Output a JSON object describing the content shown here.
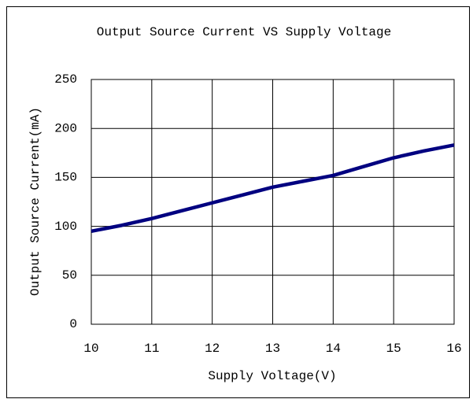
{
  "chart_data": {
    "type": "line",
    "title": "Output Source Current VS Supply Voltage",
    "x_label": "Supply Voltage(V)",
    "y_label": "Output Source Current(mA)",
    "x": [
      10,
      10.5,
      11,
      11.5,
      12,
      12.5,
      13,
      13.5,
      14,
      14.5,
      15,
      15.5,
      16
    ],
    "series": [
      {
        "name": "Output Source Current",
        "color": "#000080",
        "values": [
          95,
          101,
          108,
          116,
          124,
          132,
          140,
          146,
          152,
          161,
          170,
          177,
          183
        ]
      }
    ],
    "xlim": [
      10,
      16
    ],
    "xticks": [
      10,
      11,
      12,
      13,
      14,
      15,
      16
    ],
    "ylim": [
      0,
      250
    ],
    "yticks": [
      0,
      50,
      100,
      150,
      200,
      250
    ],
    "grid": true
  }
}
